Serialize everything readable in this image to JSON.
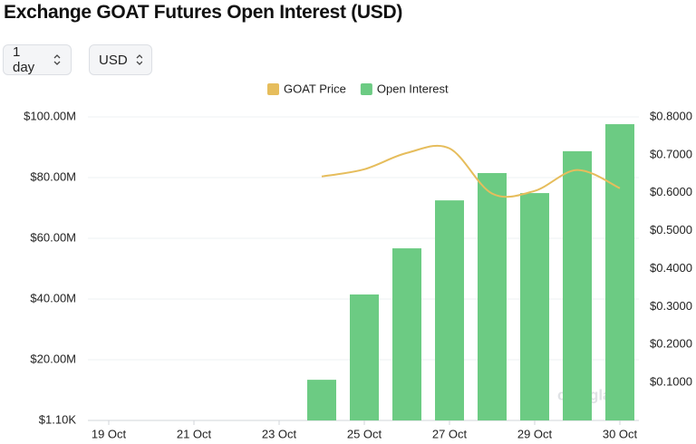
{
  "controls": [
    "1 day",
    "USD"
  ],
  "chart_data": {
    "type": "bar",
    "title": "Exchange GOAT Futures Open Interest (USD)",
    "watermark": "coinglass",
    "categories": [
      "19 Oct",
      null,
      "21 Oct",
      null,
      "23 Oct",
      null,
      "25 Oct",
      null,
      "27 Oct",
      null,
      "29 Oct",
      null,
      "30 Oct"
    ],
    "series": [
      {
        "name": "GOAT Price",
        "type": "line",
        "axis": "y2",
        "color": "#e6bd5c",
        "values": [
          null,
          null,
          null,
          null,
          null,
          0.643,
          0.662,
          0.705,
          0.717,
          0.598,
          0.605,
          0.66,
          0.612
        ]
      },
      {
        "name": "Open Interest",
        "type": "bar",
        "color": "#6ccb83",
        "values": [
          null,
          null,
          null,
          null,
          null,
          13400000,
          41500000,
          56700000,
          72500000,
          81500000,
          74900000,
          88700000,
          97600000
        ]
      }
    ],
    "ylim": [
      1100,
      100000000
    ],
    "yticks": [
      {
        "value": 1100,
        "label": "$1.10K"
      },
      {
        "value": 20000000,
        "label": "$20.00M"
      },
      {
        "value": 40000000,
        "label": "$40.00M"
      },
      {
        "value": 60000000,
        "label": "$60.00M"
      },
      {
        "value": 80000000,
        "label": "$80.00M"
      },
      {
        "value": 100000000,
        "label": "$100.00M"
      }
    ],
    "y2lim": [
      0,
      0.8
    ],
    "y2ticks": [
      {
        "value": 0.1,
        "label": "$0.1000"
      },
      {
        "value": 0.2,
        "label": "$0.2000"
      },
      {
        "value": 0.3,
        "label": "$0.3000"
      },
      {
        "value": 0.4,
        "label": "$0.4000"
      },
      {
        "value": 0.5,
        "label": "$0.5000"
      },
      {
        "value": 0.6,
        "label": "$0.6000"
      },
      {
        "value": 0.7,
        "label": "$0.7000"
      },
      {
        "value": 0.8,
        "label": "$0.8000"
      }
    ],
    "grid": true
  }
}
